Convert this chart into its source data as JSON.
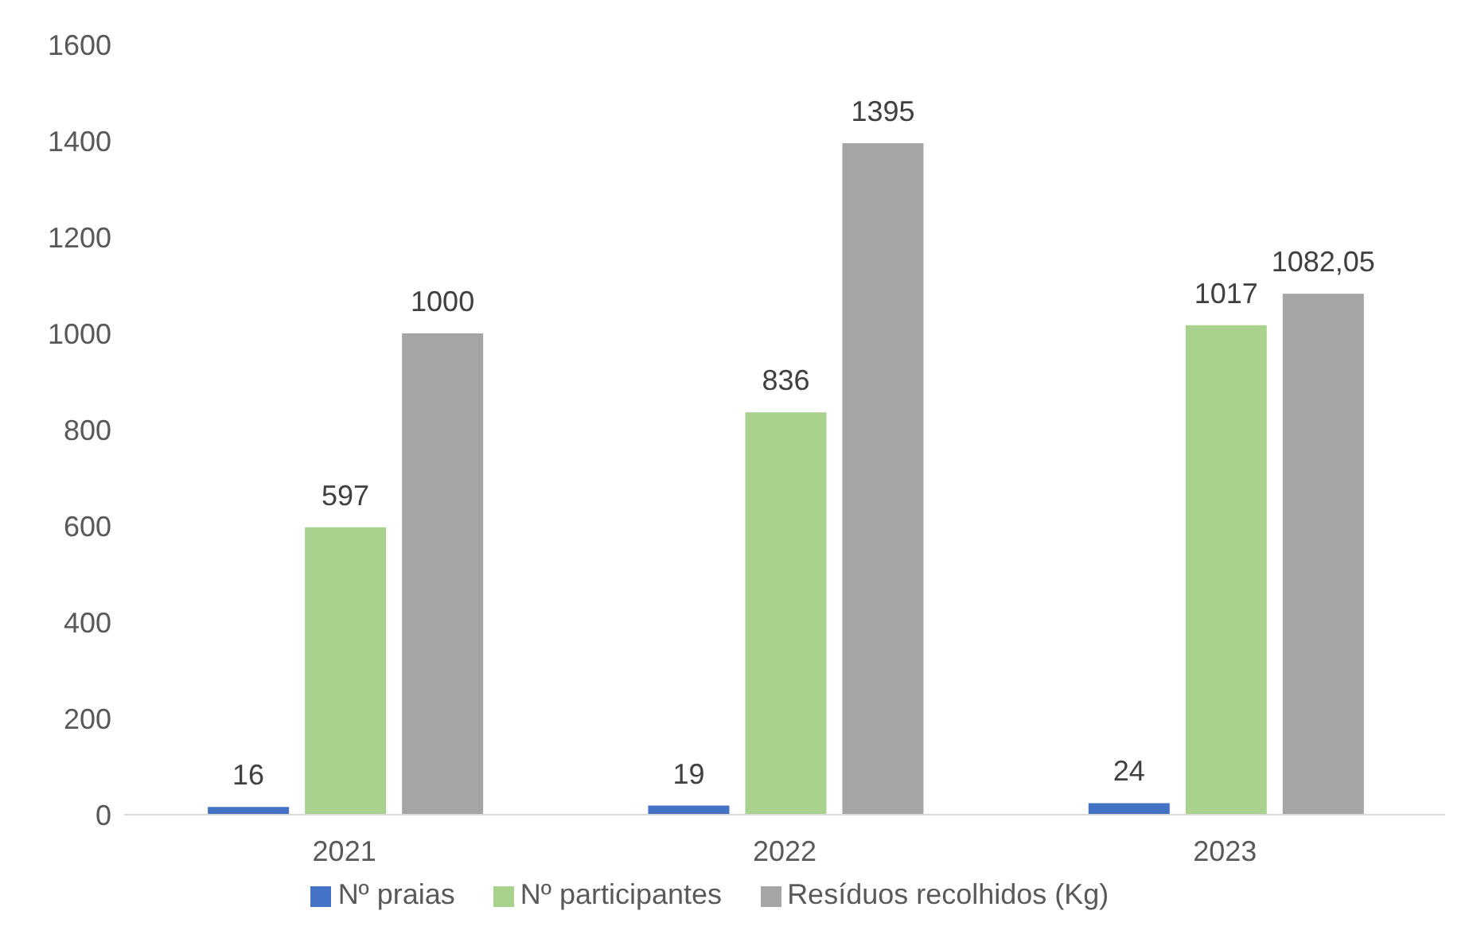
{
  "chart_data": {
    "type": "bar",
    "categories": [
      "2021",
      "2022",
      "2023"
    ],
    "series": [
      {
        "name": "Nº praias",
        "color": "#4472c4",
        "values": [
          16,
          19,
          24
        ],
        "value_labels": [
          "16",
          "19",
          "24"
        ]
      },
      {
        "name": "Nº participantes",
        "color": "#a9d18e",
        "values": [
          597,
          836,
          1017
        ],
        "value_labels": [
          "597",
          "836",
          "1017"
        ]
      },
      {
        "name": "Resíduos recolhidos (Kg)",
        "color": "#a5a5a5",
        "values": [
          1000,
          1395,
          1082.05
        ],
        "value_labels": [
          "1000",
          "1395",
          "1082,05"
        ]
      }
    ],
    "ylim": [
      0,
      1600
    ],
    "yticks": [
      0,
      200,
      400,
      600,
      800,
      1000,
      1200,
      1400,
      1600
    ],
    "legend": "bottom"
  }
}
